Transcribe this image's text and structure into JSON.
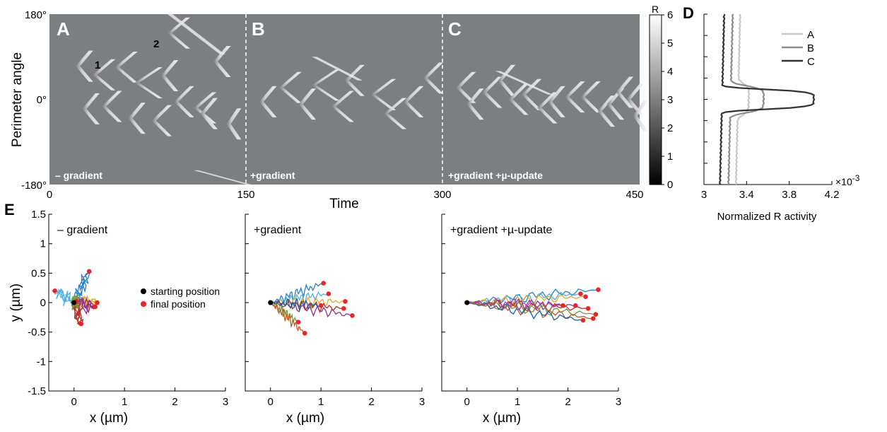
{
  "chart_data": [
    {
      "id": "kymograph",
      "type": "heatmap",
      "xlabel": "Time",
      "ylabel": "Perimeter angle",
      "xlim": [
        0,
        450
      ],
      "ylim": [
        -180,
        180
      ],
      "x_ticks": [
        "0",
        "150",
        "300",
        "450"
      ],
      "y_ticks": [
        "180°",
        "0°",
        "-180°"
      ],
      "panel_letters": [
        "A",
        "B",
        "C"
      ],
      "condition_labels": [
        "– gradient",
        "+gradient",
        "+gradient +µ-update"
      ],
      "annotations": [
        "1",
        "2"
      ],
      "colorbar": {
        "label": "R",
        "ticks": [
          "0",
          "1",
          "2",
          "3",
          "4",
          "5",
          "6"
        ],
        "range": [
          0,
          6
        ]
      },
      "background_color": "#7c7f81"
    },
    {
      "id": "R-activity-profile",
      "type": "line",
      "panel_letter": "D",
      "xlabel": "Normalized R activity",
      "x_ticks": [
        "3",
        "3.4",
        "3.8",
        "4.2"
      ],
      "x_multiplier": "×10",
      "x_multiplier_exp": "-3",
      "xlim": [
        3.0,
        4.2
      ],
      "ylim": [
        -180,
        180
      ],
      "legend": [
        "A",
        "B",
        "C"
      ],
      "legend_position": "top-right",
      "series": [
        {
          "name": "A",
          "color": "#c8c8c8",
          "baseline": 3.32,
          "peak": 3.42,
          "width": 35
        },
        {
          "name": "B",
          "color": "#8c8c8c",
          "baseline": 3.25,
          "peak": 3.56,
          "width": 30
        },
        {
          "name": "C",
          "color": "#333333",
          "baseline": 3.17,
          "peak": 4.03,
          "width": 22
        }
      ]
    },
    {
      "id": "trajectories",
      "type": "line",
      "panel_letter": "E",
      "xlabel": "x (µm)",
      "ylabel": "y (µm)",
      "xlim": [
        -0.5,
        3
      ],
      "ylim": [
        -1.5,
        1.5
      ],
      "x_ticks": [
        "0",
        "1",
        "2",
        "3"
      ],
      "y_ticks": [
        "1.5",
        "1",
        "0.5",
        "0",
        "-0.5",
        "-1",
        "-1.5"
      ],
      "legend": [
        "starting position",
        "final position"
      ],
      "panels": [
        {
          "title": "– gradient",
          "endpoints": [
            [
              0.3,
              0.53
            ],
            [
              -0.38,
              0.2
            ],
            [
              0.46,
              0.0
            ],
            [
              0.42,
              -0.07
            ],
            [
              0.14,
              -0.36
            ],
            [
              0.05,
              0.02
            ]
          ]
        },
        {
          "title": "+gradient",
          "endpoints": [
            [
              1.05,
              0.33
            ],
            [
              1.15,
              0.15
            ],
            [
              1.48,
              0.02
            ],
            [
              1.62,
              -0.22
            ],
            [
              1.45,
              -0.1
            ],
            [
              0.55,
              -0.33
            ],
            [
              0.68,
              -0.52
            ],
            [
              1.0,
              -0.05
            ]
          ]
        },
        {
          "title": "+gradient +µ-update",
          "endpoints": [
            [
              2.6,
              0.22
            ],
            [
              2.25,
              0.15
            ],
            [
              2.35,
              0.1
            ],
            [
              2.15,
              -0.05
            ],
            [
              2.4,
              -0.1
            ],
            [
              2.55,
              -0.2
            ],
            [
              2.5,
              -0.27
            ],
            [
              2.3,
              -0.3
            ],
            [
              1.9,
              -0.05
            ]
          ]
        }
      ]
    }
  ],
  "colors": {
    "final": "#e8262a",
    "start": "#000000",
    "traj": [
      "#2a7fc6",
      "#4fb2e4",
      "#e7a823",
      "#8c2f8c",
      "#b3322d",
      "#7a9a30",
      "#c4582a",
      "#1f5fa4",
      "#a63fa6"
    ]
  }
}
